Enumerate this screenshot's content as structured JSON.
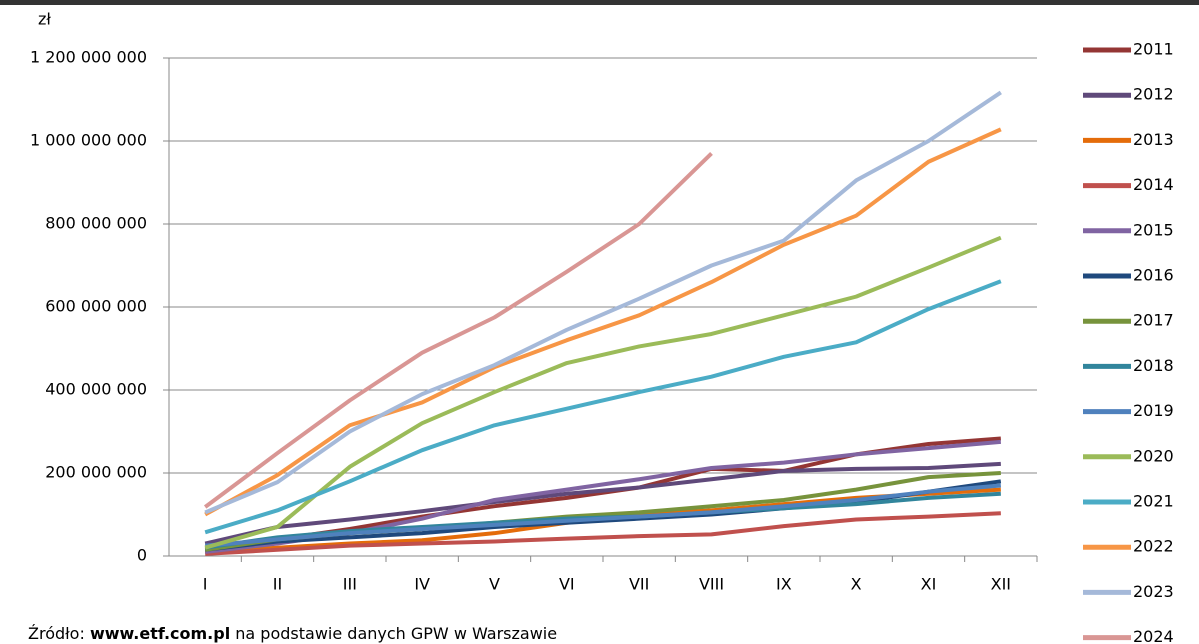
{
  "chart_data": {
    "type": "line",
    "unit_label": "zł",
    "source": {
      "prefix": "Źródło: ",
      "link": "www.etf.com.pl",
      "suffix": " na podstawie danych GPW w Warszawie"
    },
    "categories": [
      "I",
      "II",
      "III",
      "IV",
      "V",
      "VI",
      "VII",
      "VIII",
      "IX",
      "X",
      "XI",
      "XII"
    ],
    "ylim": [
      0,
      1200000000
    ],
    "yticks": [
      0,
      {
        "value": 200000000,
        "label": "200 000 000"
      },
      {
        "value": 400000000,
        "label": "400 000 000"
      },
      {
        "value": 600000000,
        "label": "600 000 000"
      },
      {
        "value": 800000000,
        "label": "800 000 000"
      },
      {
        "value": 1000000000,
        "label": "1 000 000 000"
      },
      {
        "value": 1200000000,
        "label": "1 200 000 000"
      }
    ],
    "grid": true,
    "legend": "right",
    "series": [
      {
        "name": "2011",
        "color": "#943634",
        "values": [
          15000000,
          40000000,
          65000000,
          95000000,
          120000000,
          140000000,
          165000000,
          210000000,
          205000000,
          245000000,
          270000000,
          283000000
        ]
      },
      {
        "name": "2012",
        "color": "#5f497a",
        "values": [
          30000000,
          70000000,
          88000000,
          108000000,
          130000000,
          150000000,
          165000000,
          185000000,
          205000000,
          210000000,
          212000000,
          222000000
        ]
      },
      {
        "name": "2013",
        "color": "#e46c0a",
        "values": [
          10000000,
          20000000,
          30000000,
          38000000,
          55000000,
          80000000,
          100000000,
          110000000,
          125000000,
          140000000,
          150000000,
          160000000
        ]
      },
      {
        "name": "2014",
        "color": "#c0504d",
        "values": [
          5000000,
          15000000,
          25000000,
          30000000,
          35000000,
          42000000,
          48000000,
          52000000,
          72000000,
          88000000,
          95000000,
          103000000
        ]
      },
      {
        "name": "2015",
        "color": "#8064a2",
        "values": [
          10000000,
          30000000,
          55000000,
          90000000,
          135000000,
          160000000,
          185000000,
          212000000,
          225000000,
          245000000,
          260000000,
          275000000
        ]
      },
      {
        "name": "2016",
        "color": "#1f497d",
        "values": [
          15000000,
          35000000,
          45000000,
          55000000,
          70000000,
          80000000,
          90000000,
          100000000,
          115000000,
          130000000,
          155000000,
          180000000
        ]
      },
      {
        "name": "2017",
        "color": "#77933c",
        "values": [
          15000000,
          40000000,
          55000000,
          65000000,
          80000000,
          95000000,
          105000000,
          120000000,
          135000000,
          160000000,
          190000000,
          200000000
        ]
      },
      {
        "name": "2018",
        "color": "#31859c",
        "values": [
          20000000,
          45000000,
          60000000,
          70000000,
          80000000,
          90000000,
          95000000,
          105000000,
          115000000,
          125000000,
          140000000,
          150000000
        ]
      },
      {
        "name": "2019",
        "color": "#4f81bd",
        "values": [
          25000000,
          40000000,
          55000000,
          65000000,
          75000000,
          85000000,
          95000000,
          105000000,
          120000000,
          135000000,
          155000000,
          170000000
        ]
      },
      {
        "name": "2020",
        "color": "#9bbb59",
        "values": [
          20000000,
          70000000,
          215000000,
          320000000,
          395000000,
          465000000,
          505000000,
          535000000,
          580000000,
          625000000,
          695000000,
          767000000
        ]
      },
      {
        "name": "2021",
        "color": "#4bacc6",
        "values": [
          57000000,
          110000000,
          180000000,
          255000000,
          315000000,
          355000000,
          395000000,
          432000000,
          480000000,
          515000000,
          595000000,
          662000000
        ]
      },
      {
        "name": "2022",
        "color": "#f79646",
        "values": [
          100000000,
          195000000,
          315000000,
          370000000,
          455000000,
          520000000,
          580000000,
          660000000,
          750000000,
          820000000,
          950000000,
          1028000000
        ]
      },
      {
        "name": "2023",
        "color": "#a5b9d9",
        "values": [
          105000000,
          178000000,
          300000000,
          390000000,
          460000000,
          545000000,
          620000000,
          700000000,
          760000000,
          905000000,
          1000000000,
          1117000000
        ]
      },
      {
        "name": "2024",
        "color": "#d99694",
        "values": [
          118000000,
          248000000,
          375000000,
          490000000,
          575000000,
          685000000,
          800000000,
          970000000,
          null,
          null,
          null,
          null
        ]
      }
    ]
  }
}
